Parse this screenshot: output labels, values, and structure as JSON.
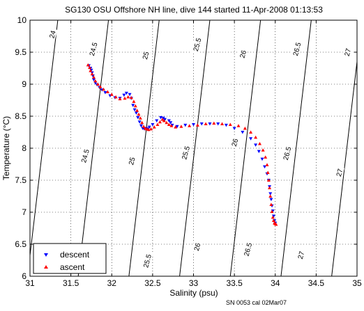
{
  "chart_data": {
    "type": "scatter",
    "title": "SG130 OSU Offshore NH line, dive 144 started 11-Apr-2008 01:13:53",
    "xlabel": "Salinity (psu)",
    "ylabel": "Temperature (°C)",
    "footer": "SN 0053 cal 02Mar07",
    "xlim": [
      31,
      35
    ],
    "ylim": [
      6,
      10
    ],
    "x_ticks": [
      31,
      31.5,
      32,
      32.5,
      33,
      33.5,
      34,
      34.5,
      35
    ],
    "y_ticks": [
      6,
      6.5,
      7,
      7.5,
      8,
      8.5,
      9,
      9.5,
      10
    ],
    "x_tick_labels": [
      "31",
      "31.5",
      "32",
      "32.5",
      "33",
      "33.5",
      "34",
      "34.5",
      "35"
    ],
    "y_tick_labels": [
      "6",
      "6.5",
      "7",
      "7.5",
      "8",
      "8.5",
      "9",
      "9.5",
      "10"
    ],
    "grid": true,
    "grid_style": "dotted",
    "legend_position": "bottom-left",
    "contours": {
      "type": "potential density isopycnals",
      "levels": [
        {
          "sigma": 24,
          "label": "24",
          "bottom_salinity": 30.97,
          "top_salinity": 31.34
        },
        {
          "sigma": 24.5,
          "label": "24.5",
          "bottom_salinity": 31.59,
          "top_salinity": 31.96
        },
        {
          "sigma": 25,
          "label": "25",
          "bottom_salinity": 32.21,
          "top_salinity": 32.58
        },
        {
          "sigma": 25.5,
          "label": "25.5",
          "bottom_salinity": 32.83,
          "top_salinity": 33.2
        },
        {
          "sigma": 26,
          "label": "26",
          "bottom_salinity": 33.45,
          "top_salinity": 33.82
        },
        {
          "sigma": 26.5,
          "label": "26.5",
          "bottom_salinity": 34.07,
          "top_salinity": 34.44
        },
        {
          "sigma": 27,
          "label": "27",
          "bottom_salinity": 34.69,
          "top_salinity": 35.06
        }
      ],
      "labels": [
        {
          "text": "24",
          "salinity": 31.27,
          "temperature": 9.78
        },
        {
          "text": "24.5",
          "salinity": 31.77,
          "temperature": 9.55
        },
        {
          "text": "25",
          "salinity": 32.41,
          "temperature": 9.45
        },
        {
          "text": "25.5",
          "salinity": 33.04,
          "temperature": 9.62
        },
        {
          "text": "26",
          "salinity": 33.6,
          "temperature": 9.47
        },
        {
          "text": "26.5",
          "salinity": 34.26,
          "temperature": 9.55
        },
        {
          "text": "27",
          "salinity": 34.88,
          "temperature": 9.5
        },
        {
          "text": "24.5",
          "salinity": 31.67,
          "temperature": 7.88
        },
        {
          "text": "25",
          "salinity": 32.24,
          "temperature": 7.8
        },
        {
          "text": "25.5",
          "salinity": 32.9,
          "temperature": 7.93
        },
        {
          "text": "26",
          "salinity": 33.5,
          "temperature": 8.09
        },
        {
          "text": "26.5",
          "salinity": 34.14,
          "temperature": 7.92
        },
        {
          "text": "27",
          "salinity": 34.78,
          "temperature": 7.62
        },
        {
          "text": "24.5",
          "salinity": 31.12,
          "temperature": 6.4
        },
        {
          "text": "25.5",
          "salinity": 32.43,
          "temperature": 6.24
        },
        {
          "text": "26",
          "salinity": 33.04,
          "temperature": 6.46
        },
        {
          "text": "26.5",
          "salinity": 33.66,
          "temperature": 6.42
        },
        {
          "text": "27",
          "salinity": 34.31,
          "temperature": 6.33
        }
      ]
    },
    "series": [
      {
        "name": "descent",
        "marker": "triangle-down",
        "color": "#0000ff",
        "x": [
          31.72,
          31.74,
          31.75,
          31.76,
          31.77,
          31.78,
          31.8,
          31.82,
          31.85,
          31.88,
          31.92,
          31.98,
          32.04,
          32.1,
          32.15,
          32.18,
          32.22,
          32.24,
          32.26,
          32.28,
          32.3,
          32.32,
          32.34,
          32.36,
          32.38,
          32.4,
          32.42,
          32.44,
          32.46,
          32.5,
          32.55,
          32.6,
          32.63,
          32.65,
          32.7,
          32.72,
          32.74,
          32.8,
          32.9,
          33.0,
          33.1,
          33.2,
          33.3,
          33.4,
          33.5,
          33.6,
          33.7,
          33.76,
          33.8,
          33.84,
          33.87,
          33.9,
          33.92,
          33.93,
          33.94,
          33.95,
          33.96,
          33.97,
          33.98,
          33.99,
          34.0
        ],
        "y": [
          9.29,
          9.25,
          9.22,
          9.18,
          9.13,
          9.07,
          9.02,
          8.99,
          8.95,
          8.91,
          8.87,
          8.82,
          8.79,
          8.78,
          8.83,
          8.86,
          8.84,
          8.78,
          8.67,
          8.6,
          8.55,
          8.48,
          8.41,
          8.35,
          8.31,
          8.3,
          8.31,
          8.3,
          8.33,
          8.37,
          8.43,
          8.48,
          8.47,
          8.45,
          8.43,
          8.4,
          8.36,
          8.34,
          8.36,
          8.37,
          8.38,
          8.38,
          8.38,
          8.36,
          8.31,
          8.25,
          8.15,
          8.05,
          7.95,
          7.83,
          7.71,
          7.6,
          7.5,
          7.4,
          7.29,
          7.2,
          7.1,
          7.02,
          6.94,
          6.87,
          6.83
        ]
      },
      {
        "name": "ascent",
        "marker": "triangle-up",
        "color": "#ff0000",
        "x": [
          31.71,
          31.73,
          31.74,
          31.76,
          31.78,
          31.8,
          31.83,
          31.86,
          31.9,
          31.95,
          32.0,
          32.05,
          32.1,
          32.16,
          32.2,
          32.24,
          32.27,
          32.29,
          32.31,
          32.33,
          32.35,
          32.37,
          32.39,
          32.41,
          32.43,
          32.45,
          32.48,
          32.52,
          32.56,
          32.59,
          32.62,
          32.64,
          32.67,
          32.7,
          32.73,
          32.78,
          32.85,
          32.95,
          33.05,
          33.15,
          33.25,
          33.35,
          33.45,
          33.55,
          33.63,
          33.7,
          33.76,
          33.81,
          33.85,
          33.88,
          33.9,
          33.91,
          33.92,
          33.93,
          33.94,
          33.95,
          33.96,
          33.97,
          33.98,
          33.99,
          34.0,
          34.01
        ],
        "y": [
          9.3,
          9.26,
          9.21,
          9.16,
          9.11,
          9.05,
          9.0,
          8.96,
          8.92,
          8.88,
          8.84,
          8.8,
          8.77,
          8.78,
          8.8,
          8.79,
          8.73,
          8.66,
          8.59,
          8.53,
          8.47,
          8.4,
          8.34,
          8.31,
          8.3,
          8.29,
          8.3,
          8.33,
          8.37,
          8.41,
          8.45,
          8.43,
          8.4,
          8.37,
          8.35,
          8.33,
          8.34,
          8.35,
          8.36,
          8.38,
          8.39,
          8.38,
          8.37,
          8.35,
          8.31,
          8.25,
          8.17,
          8.07,
          7.97,
          7.86,
          7.74,
          7.62,
          7.5,
          7.38,
          7.25,
          7.12,
          7.01,
          6.92,
          6.87,
          6.83,
          6.82,
          6.81
        ]
      }
    ]
  }
}
